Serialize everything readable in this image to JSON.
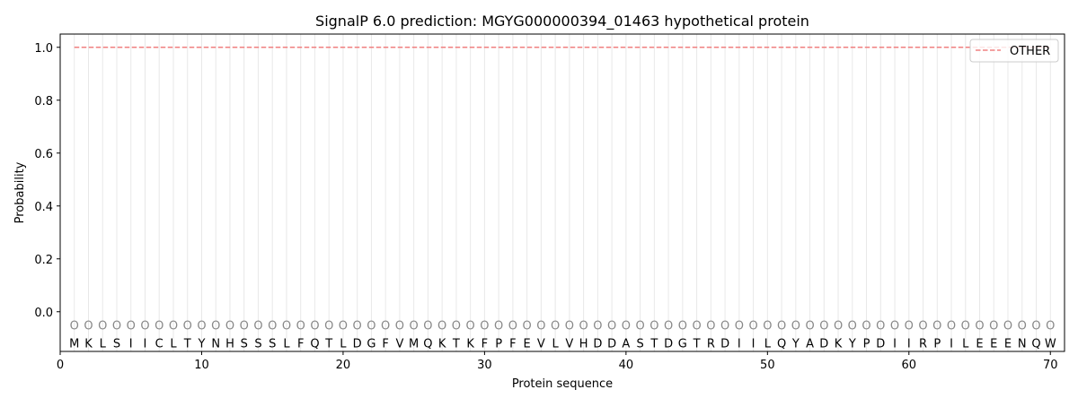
{
  "chart_data": {
    "type": "line",
    "title": "SignalP 6.0 prediction: MGYG000000394_01463 hypothetical protein",
    "xlabel": "Protein sequence",
    "ylabel": "Probability",
    "xlim": [
      0,
      71
    ],
    "ylim": [
      -0.15,
      1.05
    ],
    "xticks": [
      0,
      10,
      20,
      30,
      40,
      50,
      60,
      70
    ],
    "yticks": [
      0.0,
      0.2,
      0.4,
      0.6,
      0.8,
      1.0
    ],
    "ytick_labels": [
      "0.0",
      "0.2",
      "0.4",
      "0.6",
      "0.8",
      "1.0"
    ],
    "grid": "vertical lines at each residue",
    "legend_position": "top-right",
    "sequence": [
      "M",
      "K",
      "L",
      "S",
      "I",
      "I",
      "C",
      "L",
      "T",
      "Y",
      "N",
      "H",
      "S",
      "S",
      "S",
      "L",
      "F",
      "Q",
      "T",
      "L",
      "D",
      "G",
      "F",
      "V",
      "M",
      "Q",
      "K",
      "T",
      "K",
      "F",
      "P",
      "F",
      "E",
      "V",
      "L",
      "V",
      "H",
      "D",
      "D",
      "A",
      "S",
      "T",
      "D",
      "G",
      "T",
      "R",
      "D",
      "I",
      "I",
      "L",
      "Q",
      "Y",
      "A",
      "D",
      "K",
      "Y",
      "P",
      "D",
      "I",
      "I",
      "R",
      "P",
      "I",
      "L",
      "E",
      "E",
      "E",
      "N",
      "Q",
      "W"
    ],
    "predicted_labels": "O",
    "series": [
      {
        "name": "OTHER",
        "color": "#f08080",
        "style": "dashed",
        "x_start": 1,
        "x_end": 70,
        "value": 1.0
      }
    ]
  }
}
